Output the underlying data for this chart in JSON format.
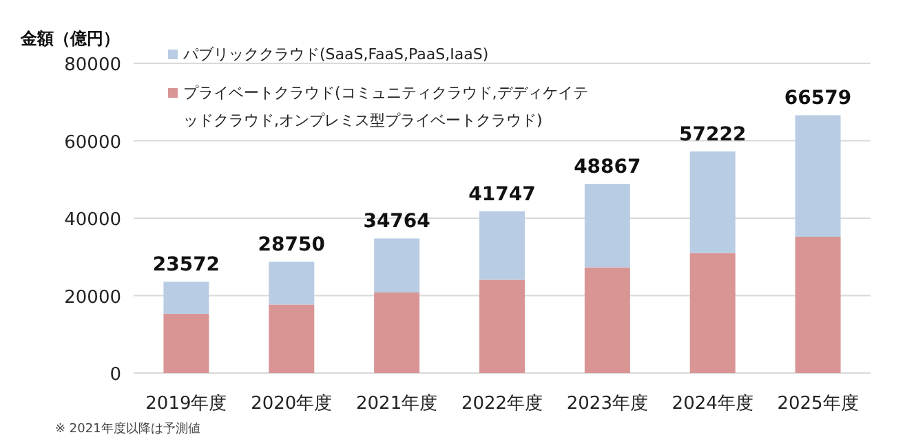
{
  "chart_data": {
    "type": "bar",
    "stacked": true,
    "ylabel": "金額（億円）",
    "categories": [
      "2019年度",
      "2020年度",
      "2021年度",
      "2022年度",
      "2023年度",
      "2024年度",
      "2025年度"
    ],
    "series": [
      {
        "name": "プライベートクラウド(コミュニティクラウド,デディケイテッドクラウド,オンプレミス型プライベートクラウド)",
        "color": "#d99594",
        "values": [
          15300,
          17700,
          20800,
          24100,
          27300,
          31000,
          35200
        ]
      },
      {
        "name": "パブリッククラウド(SaaS,FaaS,PaaS,IaaS)",
        "color": "#b8cce4",
        "values": [
          8272,
          11050,
          13964,
          17647,
          21567,
          26222,
          31379
        ]
      }
    ],
    "totals": [
      "23572",
      "28750",
      "34764",
      "41747",
      "48867",
      "57222",
      "66579"
    ],
    "ylim": [
      0,
      80000
    ],
    "yticks": [
      0,
      20000,
      40000,
      60000,
      80000
    ],
    "grid": "y",
    "legend": "top left",
    "annotations": [
      "※ 2021年度以降は予測値"
    ]
  }
}
